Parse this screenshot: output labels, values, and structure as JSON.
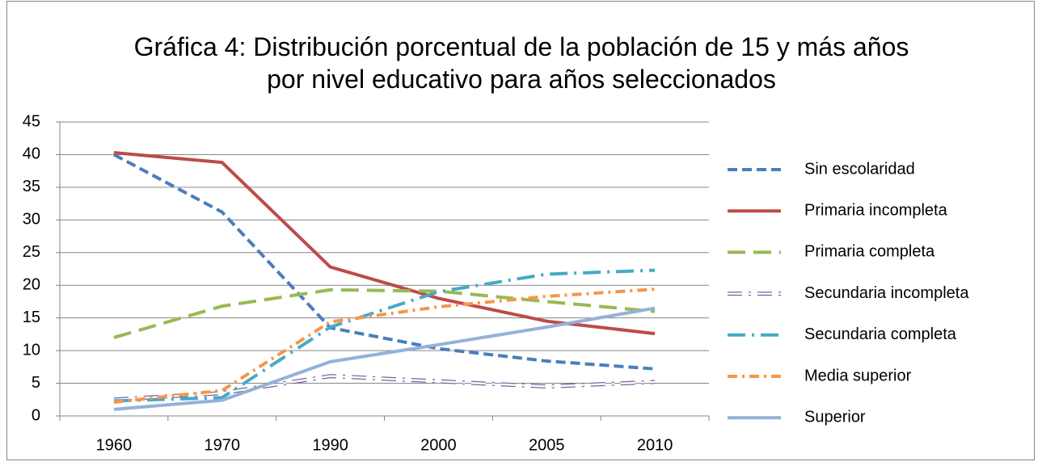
{
  "chart_data": {
    "type": "line",
    "title": "Gráfica 4: Distribución porcentual de la población de 15 y más años por nivel educativo para años seleccionados",
    "categories": [
      "1960",
      "1970",
      "1990",
      "2000",
      "2005",
      "2010"
    ],
    "series": [
      {
        "name": "Sin escolaridad",
        "color": "#4a7ebb",
        "dash": "dash",
        "values": [
          40,
          31.2,
          13.5,
          10.3,
          8.4,
          7.2
        ]
      },
      {
        "name": "Primaria incompleta",
        "color": "#be4b48",
        "dash": "solid",
        "values": [
          40.3,
          38.8,
          22.8,
          18,
          14.5,
          12.6
        ]
      },
      {
        "name": "Primaria completa",
        "color": "#98b954",
        "dash": "long-dash",
        "values": [
          12,
          16.8,
          19.3,
          19.1,
          17.5,
          16
        ]
      },
      {
        "name": "Secundaria incompleta",
        "color": "#7d60a0",
        "dash": "hollow-dash-dot",
        "values": [
          2.5,
          3.5,
          6.1,
          5.3,
          4.5,
          5.2
        ]
      },
      {
        "name": "Secundaria completa",
        "color": "#46aac5",
        "dash": "long-dash-dot",
        "values": [
          2.3,
          2.8,
          13.6,
          19,
          21.7,
          22.3
        ]
      },
      {
        "name": "Media superior",
        "color": "#f79646",
        "dash": "dash-dot",
        "values": [
          2.1,
          3.9,
          14.4,
          16.7,
          18.3,
          19.4
        ]
      },
      {
        "name": "Superior",
        "color": "#94b1d8",
        "dash": "solid",
        "values": [
          1,
          2.4,
          8.3,
          10.9,
          13.6,
          16.5
        ]
      }
    ],
    "ylim": [
      0,
      45
    ],
    "yticks": [
      0,
      5,
      10,
      15,
      20,
      25,
      30,
      35,
      40,
      45
    ],
    "grid": true,
    "legend": "right"
  }
}
